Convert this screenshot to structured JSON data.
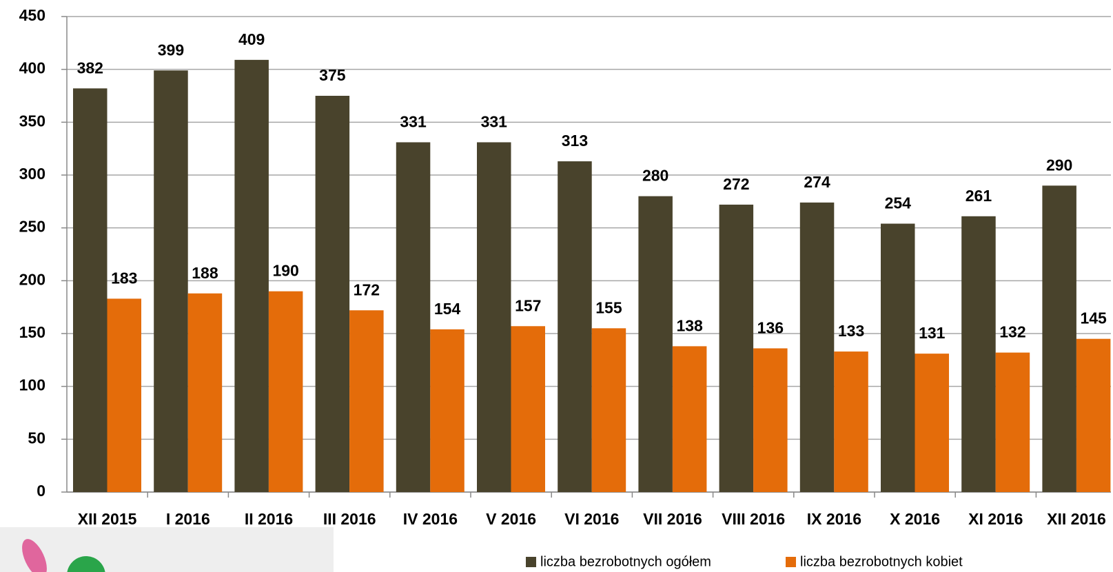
{
  "chart_data": {
    "type": "bar",
    "categories": [
      "XII 2015",
      "I 2016",
      "II 2016",
      "III 2016",
      "IV 2016",
      "V 2016",
      "VI 2016",
      "VII 2016",
      "VIII 2016",
      "IX 2016",
      "X 2016",
      "XI 2016",
      "XII 2016"
    ],
    "series": [
      {
        "name": "liczba bezrobotnych ogółem",
        "color": "#49432c",
        "values": [
          382,
          399,
          409,
          375,
          331,
          331,
          313,
          280,
          272,
          274,
          254,
          261,
          290
        ]
      },
      {
        "name": "liczba bezrobotnych kobiet",
        "color": "#e46c0a",
        "values": [
          183,
          188,
          190,
          172,
          154,
          157,
          155,
          138,
          136,
          133,
          131,
          132,
          145
        ]
      }
    ],
    "ylim": [
      0,
      450
    ],
    "yticks": [
      0,
      50,
      100,
      150,
      200,
      250,
      300,
      350,
      400,
      450
    ],
    "grid": true,
    "legend": "bottom"
  }
}
